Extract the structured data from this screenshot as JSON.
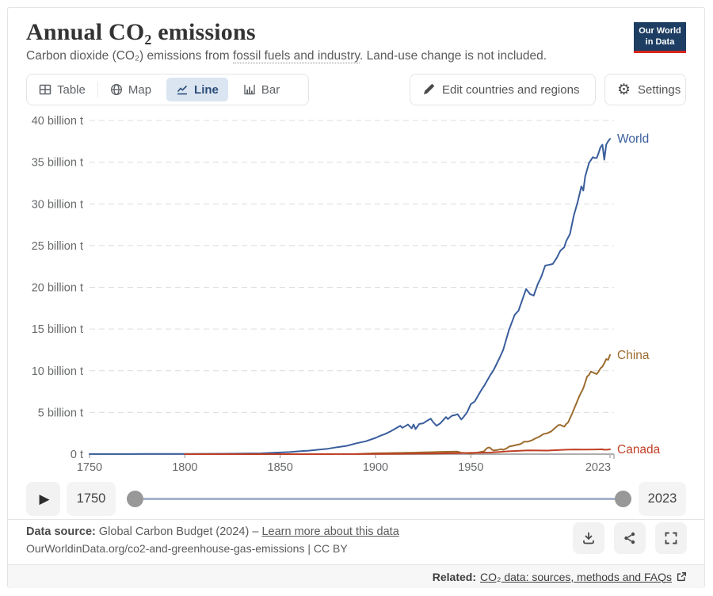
{
  "header": {
    "title": "Annual CO₂ emissions",
    "subtitle_prefix": "Carbon dioxide (CO₂) emissions from ",
    "subtitle_link": "fossil fuels and industry",
    "subtitle_suffix": ". Land-use change is not included.",
    "logo_line1": "Our World",
    "logo_line2": "in Data"
  },
  "toolbar": {
    "tabs": [
      {
        "label": "Table",
        "icon": "table-icon",
        "active": false
      },
      {
        "label": "Map",
        "icon": "globe-icon",
        "active": false
      },
      {
        "label": "Line",
        "icon": "line-chart-icon",
        "active": true
      },
      {
        "label": "Bar",
        "icon": "bar-chart-icon",
        "active": false
      }
    ],
    "edit_button": "Edit countries and regions",
    "settings_button": "Settings"
  },
  "icons": {
    "play": "▶",
    "gear": "⚙"
  },
  "timeline": {
    "start_year": "1750",
    "end_year": "2023"
  },
  "footer": {
    "source_label": "Data source:",
    "source_text": "Global Carbon Budget (2024)",
    "separator": "–",
    "learn_more": "Learn more about this data",
    "citation": "OurWorldinData.org/co2-and-greenhouse-gas-emissions | CC BY"
  },
  "related": {
    "label": "Related:",
    "link": "CO₂ data: sources, methods and FAQs"
  },
  "chart_data": {
    "type": "line",
    "title": "Annual CO₂ emissions",
    "unit": "billion tonnes",
    "xlim": [
      1750,
      2023
    ],
    "ylim": [
      0,
      40
    ],
    "grid": true,
    "legend_position": "line-end-labels",
    "y_ticks": [
      0,
      5,
      10,
      15,
      20,
      25,
      30,
      35,
      40
    ],
    "y_tick_labels": [
      "0 t",
      "5 billion t",
      "10 billion t",
      "15 billion t",
      "20 billion t",
      "25 billion t",
      "30 billion t",
      "35 billion t",
      "40 billion t"
    ],
    "x_ticks": [
      1750,
      1800,
      1850,
      1900,
      1950,
      2023
    ],
    "series": [
      {
        "name": "World",
        "color": "#3a5e9c",
        "points": [
          [
            1750,
            0.011
          ],
          [
            1760,
            0.012
          ],
          [
            1770,
            0.014
          ],
          [
            1780,
            0.017
          ],
          [
            1790,
            0.022
          ],
          [
            1800,
            0.03
          ],
          [
            1810,
            0.035
          ],
          [
            1820,
            0.045
          ],
          [
            1830,
            0.065
          ],
          [
            1840,
            0.095
          ],
          [
            1850,
            0.197
          ],
          [
            1855,
            0.25
          ],
          [
            1860,
            0.34
          ],
          [
            1865,
            0.42
          ],
          [
            1870,
            0.53
          ],
          [
            1875,
            0.65
          ],
          [
            1880,
            0.84
          ],
          [
            1885,
            1.0
          ],
          [
            1890,
            1.3
          ],
          [
            1895,
            1.55
          ],
          [
            1900,
            1.95
          ],
          [
            1903,
            2.25
          ],
          [
            1905,
            2.4
          ],
          [
            1908,
            2.75
          ],
          [
            1910,
            3.0
          ],
          [
            1913,
            3.4
          ],
          [
            1914,
            3.15
          ],
          [
            1916,
            3.4
          ],
          [
            1917,
            3.55
          ],
          [
            1919,
            3.1
          ],
          [
            1920,
            3.55
          ],
          [
            1921,
            3.0
          ],
          [
            1923,
            3.62
          ],
          [
            1925,
            3.7
          ],
          [
            1927,
            4.0
          ],
          [
            1929,
            4.25
          ],
          [
            1930,
            3.9
          ],
          [
            1932,
            3.4
          ],
          [
            1934,
            3.7
          ],
          [
            1936,
            4.2
          ],
          [
            1937,
            4.45
          ],
          [
            1938,
            4.2
          ],
          [
            1940,
            4.6
          ],
          [
            1942,
            4.7
          ],
          [
            1943,
            4.8
          ],
          [
            1945,
            4.15
          ],
          [
            1946,
            4.4
          ],
          [
            1948,
            5.0
          ],
          [
            1950,
            6.0
          ],
          [
            1952,
            6.3
          ],
          [
            1955,
            7.5
          ],
          [
            1957,
            8.2
          ],
          [
            1960,
            9.4
          ],
          [
            1962,
            10.1
          ],
          [
            1965,
            11.5
          ],
          [
            1967,
            12.5
          ],
          [
            1970,
            14.9
          ],
          [
            1973,
            16.7
          ],
          [
            1975,
            17.2
          ],
          [
            1977,
            18.5
          ],
          [
            1979,
            19.8
          ],
          [
            1981,
            19.2
          ],
          [
            1983,
            19.0
          ],
          [
            1985,
            20.3
          ],
          [
            1987,
            21.3
          ],
          [
            1989,
            22.6
          ],
          [
            1991,
            22.7
          ],
          [
            1993,
            22.8
          ],
          [
            1995,
            23.5
          ],
          [
            1997,
            24.4
          ],
          [
            1999,
            24.8
          ],
          [
            2000,
            25.5
          ],
          [
            2002,
            26.4
          ],
          [
            2004,
            28.6
          ],
          [
            2006,
            30.2
          ],
          [
            2008,
            32.1
          ],
          [
            2009,
            31.6
          ],
          [
            2010,
            33.3
          ],
          [
            2012,
            34.9
          ],
          [
            2014,
            35.6
          ],
          [
            2015,
            35.5
          ],
          [
            2016,
            35.5
          ],
          [
            2017,
            36.1
          ],
          [
            2018,
            36.8
          ],
          [
            2019,
            37.1
          ],
          [
            2020,
            35.3
          ],
          [
            2021,
            37.1
          ],
          [
            2022,
            37.5
          ],
          [
            2023,
            37.8
          ]
        ]
      },
      {
        "name": "China",
        "color": "#9c6b2e",
        "points": [
          [
            1890,
            0.005
          ],
          [
            1900,
            0.1
          ],
          [
            1905,
            0.12
          ],
          [
            1910,
            0.14
          ],
          [
            1915,
            0.16
          ],
          [
            1920,
            0.18
          ],
          [
            1925,
            0.21
          ],
          [
            1930,
            0.24
          ],
          [
            1935,
            0.28
          ],
          [
            1940,
            0.29
          ],
          [
            1943,
            0.3
          ],
          [
            1945,
            0.16
          ],
          [
            1948,
            0.12
          ],
          [
            1950,
            0.08
          ],
          [
            1952,
            0.13
          ],
          [
            1954,
            0.2
          ],
          [
            1956,
            0.3
          ],
          [
            1957,
            0.35
          ],
          [
            1958,
            0.63
          ],
          [
            1959,
            0.78
          ],
          [
            1960,
            0.78
          ],
          [
            1961,
            0.55
          ],
          [
            1962,
            0.44
          ],
          [
            1964,
            0.5
          ],
          [
            1966,
            0.6
          ],
          [
            1967,
            0.52
          ],
          [
            1969,
            0.72
          ],
          [
            1970,
            0.9
          ],
          [
            1972,
            1.0
          ],
          [
            1974,
            1.1
          ],
          [
            1976,
            1.2
          ],
          [
            1978,
            1.5
          ],
          [
            1980,
            1.5
          ],
          [
            1982,
            1.65
          ],
          [
            1984,
            1.9
          ],
          [
            1986,
            2.1
          ],
          [
            1988,
            2.4
          ],
          [
            1990,
            2.5
          ],
          [
            1992,
            2.7
          ],
          [
            1994,
            3.1
          ],
          [
            1996,
            3.5
          ],
          [
            1997,
            3.5
          ],
          [
            1999,
            3.3
          ],
          [
            2000,
            3.6
          ],
          [
            2001,
            3.8
          ],
          [
            2003,
            4.8
          ],
          [
            2005,
            5.9
          ],
          [
            2007,
            7.0
          ],
          [
            2009,
            7.9
          ],
          [
            2010,
            8.6
          ],
          [
            2011,
            9.3
          ],
          [
            2012,
            9.5
          ],
          [
            2013,
            9.9
          ],
          [
            2014,
            9.8
          ],
          [
            2015,
            9.7
          ],
          [
            2016,
            9.6
          ],
          [
            2017,
            9.9
          ],
          [
            2018,
            10.3
          ],
          [
            2019,
            10.5
          ],
          [
            2020,
            10.9
          ],
          [
            2021,
            11.4
          ],
          [
            2022,
            11.3
          ],
          [
            2023,
            11.9
          ]
        ]
      },
      {
        "name": "Canada",
        "color": "#bf4026",
        "points": [
          [
            1800,
            0.0003
          ],
          [
            1830,
            0.001
          ],
          [
            1850,
            0.002
          ],
          [
            1870,
            0.004
          ],
          [
            1890,
            0.012
          ],
          [
            1900,
            0.018
          ],
          [
            1910,
            0.04
          ],
          [
            1920,
            0.06
          ],
          [
            1930,
            0.07
          ],
          [
            1940,
            0.1
          ],
          [
            1950,
            0.15
          ],
          [
            1960,
            0.19
          ],
          [
            1970,
            0.34
          ],
          [
            1980,
            0.45
          ],
          [
            1990,
            0.43
          ],
          [
            2000,
            0.53
          ],
          [
            2005,
            0.56
          ],
          [
            2008,
            0.55
          ],
          [
            2010,
            0.54
          ],
          [
            2015,
            0.56
          ],
          [
            2019,
            0.58
          ],
          [
            2020,
            0.52
          ],
          [
            2022,
            0.55
          ],
          [
            2023,
            0.58
          ]
        ]
      }
    ]
  }
}
